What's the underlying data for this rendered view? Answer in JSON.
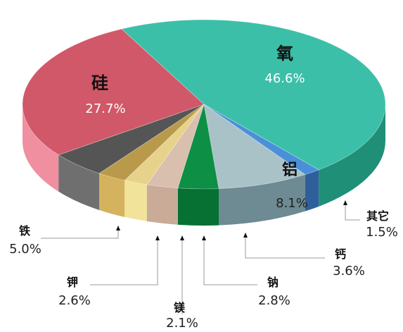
{
  "chart_data": {
    "type": "pie",
    "title": "",
    "three_d": true,
    "slices": [
      {
        "name": "氧",
        "label": "氧",
        "value": 46.6,
        "pct_label": "46.6%",
        "color": "#3cbfa8",
        "side_color": "#1f8f78"
      },
      {
        "name": "其它",
        "label": "其它",
        "value": 1.5,
        "pct_label": "1.5%",
        "color": "#4a90d9",
        "side_color": "#2e5f9a"
      },
      {
        "name": "铝",
        "label": "铝",
        "value": 8.1,
        "pct_label": "8.1%",
        "color": "#a9c2c8",
        "side_color": "#6e8a93"
      },
      {
        "name": "钙",
        "label": "钙",
        "value": 3.6,
        "pct_label": "3.6%",
        "color": "#0d8f45",
        "side_color": "#077033"
      },
      {
        "name": "钠",
        "label": "钠",
        "value": 2.8,
        "pct_label": "2.8%",
        "color": "#d9bfae",
        "side_color": "#c9ab97"
      },
      {
        "name": "镁",
        "label": "镁",
        "value": 2.1,
        "pct_label": "2.1%",
        "color": "#e6d28a",
        "side_color": "#f2e39a"
      },
      {
        "name": "钾",
        "label": "钾",
        "value": 2.6,
        "pct_label": "2.6%",
        "color": "#b99a4a",
        "side_color": "#d4b25e"
      },
      {
        "name": "铁",
        "label": "铁",
        "value": 5.0,
        "pct_label": "5.0%",
        "color": "#555555",
        "side_color": "#6f6f6f"
      },
      {
        "name": "硅",
        "label": "硅",
        "value": 27.7,
        "pct_label": "27.7%",
        "color": "#d05868",
        "side_color": "#f08fa0"
      }
    ]
  }
}
